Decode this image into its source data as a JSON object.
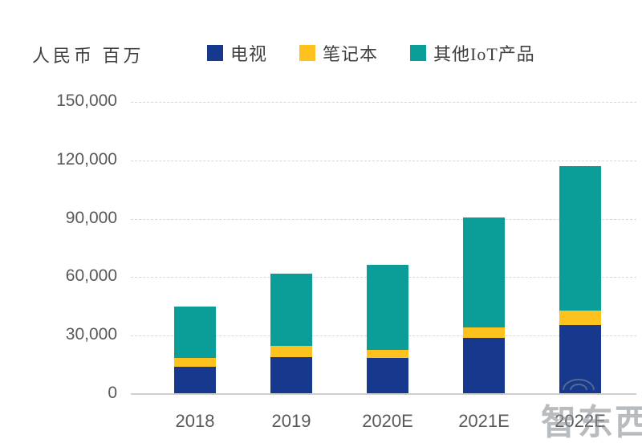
{
  "unit_label": "人民币 百万",
  "watermark": "智东西",
  "legend": [
    {
      "label": "电视",
      "color": "#16398D"
    },
    {
      "label": "笔记本",
      "color": "#FDC21E"
    },
    {
      "label": "其他IoT产品",
      "color": "#0B9D98"
    }
  ],
  "chart_data": {
    "type": "bar",
    "stacked": true,
    "title": "",
    "ylabel": "人民币 百万",
    "xlabel": "",
    "categories": [
      "2018",
      "2019",
      "2020E",
      "2021E",
      "2022E"
    ],
    "series": [
      {
        "name": "电视",
        "color": "#16398D",
        "values": [
          13400,
          18700,
          18000,
          28500,
          35200
        ]
      },
      {
        "name": "笔记本",
        "color": "#FDC21E",
        "values": [
          4900,
          5600,
          4300,
          5300,
          7300
        ]
      },
      {
        "name": "其他IoT产品",
        "color": "#0B9D98",
        "values": [
          26100,
          37100,
          43500,
          56400,
          74000
        ]
      }
    ],
    "totals": [
      44400,
      61400,
      65800,
      90200,
      116500
    ],
    "y_ticks": [
      0,
      30000,
      60000,
      90000,
      120000,
      150000
    ],
    "ylim": [
      0,
      150000
    ],
    "grid": "horizontal-dashed",
    "legend_position": "top",
    "colors": {
      "grid": "#d8d8d8",
      "axis_line": "#cfcfcf",
      "tick_text": "#595959",
      "label_text": "#3f3f3f"
    }
  }
}
